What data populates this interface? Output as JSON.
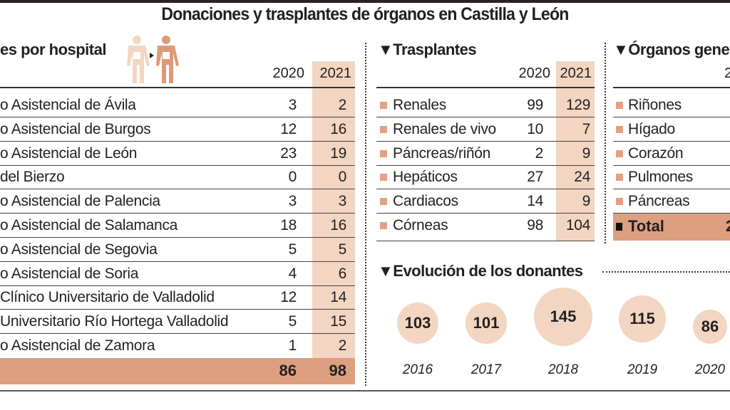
{
  "title": "Donaciones y trasplantes de órganos en Castilla y León",
  "hospitales": {
    "heading": "es por hospital",
    "years": [
      "2020",
      "2021"
    ],
    "rows": [
      {
        "name": "o Asistencial de Ávila",
        "v2020": "3",
        "v2021": "2"
      },
      {
        "name": "o Asistencial de Burgos",
        "v2020": "12",
        "v2021": "16"
      },
      {
        "name": "o Asistencial de León",
        "v2020": "23",
        "v2021": "19"
      },
      {
        "name": "del Bierzo",
        "v2020": "0",
        "v2021": "0"
      },
      {
        "name": "o Asistencial de Palencia",
        "v2020": "3",
        "v2021": "3"
      },
      {
        "name": "o Asistencial de Salamanca",
        "v2020": "18",
        "v2021": "16"
      },
      {
        "name": "o Asistencial de Segovia",
        "v2020": "5",
        "v2021": "5"
      },
      {
        "name": "o Asistencial de Soria",
        "v2020": "4",
        "v2021": "6"
      },
      {
        "name": "Clínico Universitario de Valladolid",
        "v2020": "12",
        "v2021": "14"
      },
      {
        "name": "Universitario Río Hortega Valladolid",
        "v2020": "5",
        "v2021": "15"
      },
      {
        "name": "o Asistencial de Zamora",
        "v2020": "1",
        "v2021": "2"
      }
    ],
    "total": {
      "v2020": "86",
      "v2021": "98"
    }
  },
  "trasplantes": {
    "heading": "▼Trasplantes",
    "years": [
      "2020",
      "2021"
    ],
    "rows": [
      {
        "name": "Renales",
        "v2020": "99",
        "v2021": "129"
      },
      {
        "name": "Renales de vivo",
        "v2020": "10",
        "v2021": "7"
      },
      {
        "name": "Páncreas/riñón",
        "v2020": "2",
        "v2021": "9"
      },
      {
        "name": "Hepáticos",
        "v2020": "27",
        "v2021": "24"
      },
      {
        "name": "Cardiacos",
        "v2020": "14",
        "v2021": "9"
      },
      {
        "name": "Córneas",
        "v2020": "98",
        "v2021": "104"
      }
    ]
  },
  "organos": {
    "heading": "▼Órganos gene",
    "year_partial": "2",
    "rows": [
      "Riñones",
      "Hígado",
      "Corazón",
      "Pulmones",
      "Páncreas"
    ],
    "total_label": "Total",
    "total_partial": "2"
  },
  "colors": {
    "shade": "#f2d6c2",
    "total": "#dc9f80",
    "bullet": "#e0a283"
  },
  "chart_data": {
    "type": "bubble",
    "title": "▼Evolución de los donantes",
    "categories": [
      "2016",
      "2017",
      "2018",
      "2019",
      "2020"
    ],
    "values": [
      103,
      101,
      145,
      115,
      86
    ],
    "labels": [
      "103",
      "101",
      "145",
      "115",
      "86"
    ]
  }
}
